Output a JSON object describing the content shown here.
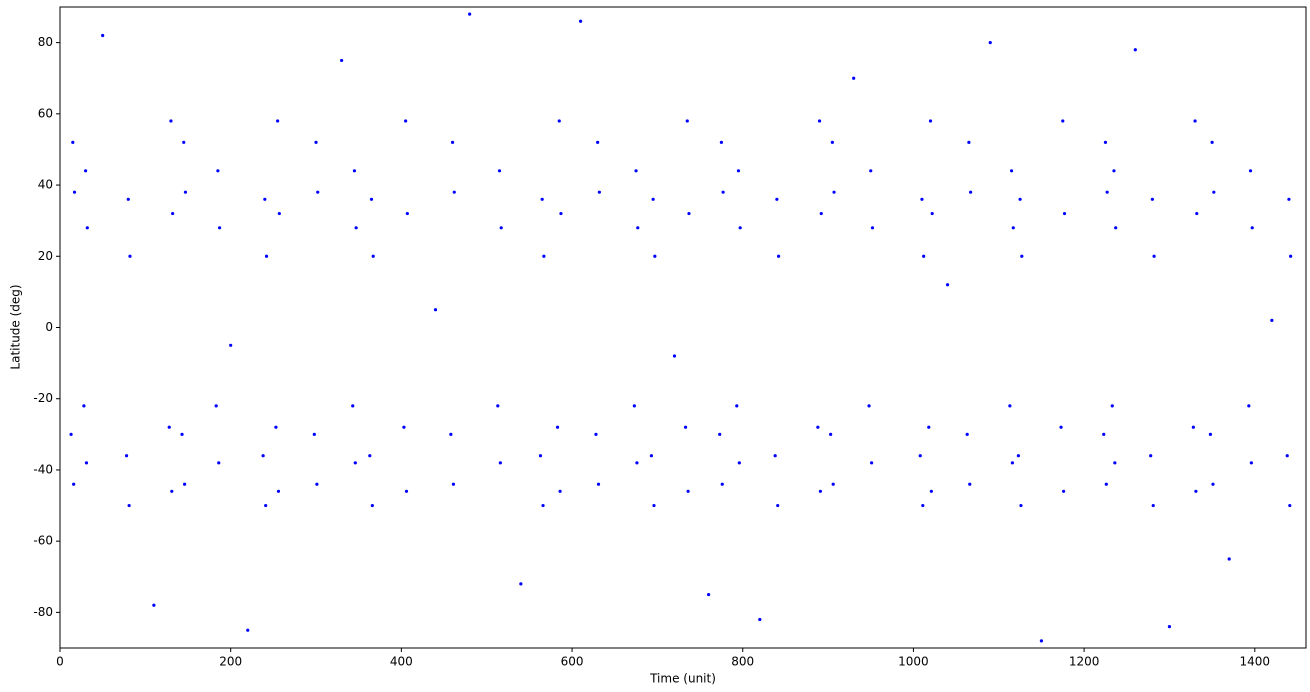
{
  "chart_data": {
    "type": "scatter",
    "xlabel": "Time (unit)",
    "ylabel": "Latitude (deg)",
    "xlim": [
      0,
      1460
    ],
    "ylim": [
      -90,
      90
    ],
    "xticks": [
      0,
      200,
      400,
      600,
      800,
      1000,
      1200,
      1400
    ],
    "yticks": [
      -80,
      -60,
      -40,
      -20,
      0,
      20,
      40,
      60,
      80
    ],
    "color": "#0000ff",
    "x": [
      15,
      17,
      13,
      16,
      30,
      32,
      28,
      31,
      80,
      82,
      78,
      81,
      130,
      132,
      128,
      131,
      145,
      147,
      143,
      146,
      185,
      187,
      183,
      186,
      240,
      242,
      238,
      241,
      255,
      257,
      253,
      256,
      300,
      302,
      298,
      301,
      345,
      347,
      343,
      346,
      365,
      367,
      363,
      366,
      405,
      407,
      403,
      406,
      460,
      462,
      458,
      461,
      515,
      517,
      513,
      516,
      565,
      567,
      563,
      566,
      585,
      587,
      583,
      586,
      630,
      632,
      628,
      631,
      675,
      677,
      673,
      676,
      695,
      697,
      693,
      696,
      735,
      737,
      733,
      736,
      775,
      777,
      773,
      776,
      795,
      797,
      793,
      796,
      840,
      842,
      838,
      841,
      890,
      892,
      888,
      891,
      905,
      907,
      903,
      906,
      950,
      952,
      948,
      951,
      1010,
      1012,
      1008,
      1011,
      1020,
      1022,
      1018,
      1021,
      1065,
      1067,
      1063,
      1066,
      1115,
      1117,
      1113,
      1116,
      1125,
      1127,
      1123,
      1126,
      1175,
      1177,
      1173,
      1176,
      1225,
      1227,
      1223,
      1226,
      1235,
      1237,
      1233,
      1236,
      1280,
      1282,
      1278,
      1281,
      1330,
      1332,
      1328,
      1331,
      1350,
      1352,
      1348,
      1351,
      1395,
      1397,
      1393,
      1396,
      1440,
      1442,
      1438,
      1441,
      50,
      110,
      220,
      330,
      440,
      540,
      610,
      720,
      820,
      930,
      1040,
      1150,
      1260,
      1370,
      1420,
      200,
      480,
      760,
      1090,
      1300
    ],
    "y": [
      52,
      38,
      -30,
      -44,
      44,
      28,
      -22,
      -38,
      36,
      20,
      -36,
      -50,
      58,
      32,
      -28,
      -46,
      52,
      38,
      -30,
      -44,
      44,
      28,
      -22,
      -38,
      36,
      20,
      -36,
      -50,
      58,
      32,
      -28,
      -46,
      52,
      38,
      -30,
      -44,
      44,
      28,
      -22,
      -38,
      36,
      20,
      -36,
      -50,
      58,
      32,
      -28,
      -46,
      52,
      38,
      -30,
      -44,
      44,
      28,
      -22,
      -38,
      36,
      20,
      -36,
      -50,
      58,
      32,
      -28,
      -46,
      52,
      38,
      -30,
      -44,
      44,
      28,
      -22,
      -38,
      36,
      20,
      -36,
      -50,
      58,
      32,
      -28,
      -46,
      52,
      38,
      -30,
      -44,
      44,
      28,
      -22,
      -38,
      36,
      20,
      -36,
      -50,
      58,
      32,
      -28,
      -46,
      52,
      38,
      -30,
      -44,
      44,
      28,
      -22,
      -38,
      36,
      20,
      -36,
      -50,
      58,
      32,
      -28,
      -46,
      52,
      38,
      -30,
      -44,
      44,
      28,
      -22,
      -38,
      36,
      20,
      -36,
      -50,
      58,
      32,
      -28,
      -46,
      52,
      38,
      -30,
      -44,
      44,
      28,
      -22,
      -38,
      36,
      20,
      -36,
      -50,
      58,
      32,
      -28,
      -46,
      52,
      38,
      -30,
      -44,
      44,
      28,
      -22,
      -38,
      36,
      20,
      -36,
      -50,
      82,
      -78,
      -85,
      75,
      5,
      -72,
      86,
      -8,
      -82,
      70,
      12,
      -88,
      78,
      -65,
      2,
      -5,
      88,
      -75,
      80,
      -84
    ]
  }
}
